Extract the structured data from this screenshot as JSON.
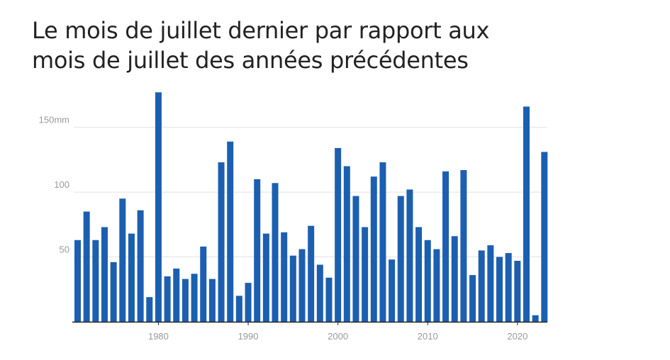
{
  "title_lines": [
    "Le mois de juillet dernier par rapport aux",
    "mois de juillet des années précédentes"
  ],
  "colors": {
    "bar": "#1c5fb0",
    "grid": "#e3e3e3",
    "axis": "#222222",
    "tick": "#999999"
  },
  "chart_data": {
    "type": "bar",
    "title": "Le mois de juillet dernier par rapport aux mois de juillet des années précédentes",
    "xlabel": "",
    "ylabel": "",
    "ylim": [
      0,
      178
    ],
    "grid": true,
    "legend": "none",
    "y_ticks": [
      {
        "value": 150,
        "label": "150mm"
      },
      {
        "value": 100,
        "label": "100"
      },
      {
        "value": 50,
        "label": "50"
      }
    ],
    "x_ticks": [
      {
        "value": 1980,
        "label": "1980"
      },
      {
        "value": 1990,
        "label": "1990"
      },
      {
        "value": 2000,
        "label": "2000"
      },
      {
        "value": 2010,
        "label": "2010"
      },
      {
        "value": 2020,
        "label": "2020"
      }
    ],
    "x": [
      1971,
      1972,
      1973,
      1974,
      1975,
      1976,
      1977,
      1978,
      1979,
      1980,
      1981,
      1982,
      1983,
      1984,
      1985,
      1986,
      1987,
      1988,
      1989,
      1990,
      1991,
      1992,
      1993,
      1994,
      1995,
      1996,
      1997,
      1998,
      1999,
      2000,
      2001,
      2002,
      2003,
      2004,
      2005,
      2006,
      2007,
      2008,
      2009,
      2010,
      2011,
      2012,
      2013,
      2014,
      2015,
      2016,
      2017,
      2018,
      2019,
      2020,
      2021,
      2022,
      2023
    ],
    "values": [
      63,
      85,
      63,
      73,
      46,
      95,
      68,
      86,
      19,
      177,
      35,
      41,
      33,
      37,
      58,
      33,
      123,
      139,
      20,
      30,
      110,
      68,
      107,
      69,
      51,
      56,
      74,
      44,
      34,
      134,
      120,
      97,
      73,
      112,
      123,
      48,
      97,
      102,
      73,
      63,
      56,
      116,
      66,
      117,
      36,
      55,
      59,
      50,
      53,
      47,
      166,
      5,
      131
    ]
  }
}
